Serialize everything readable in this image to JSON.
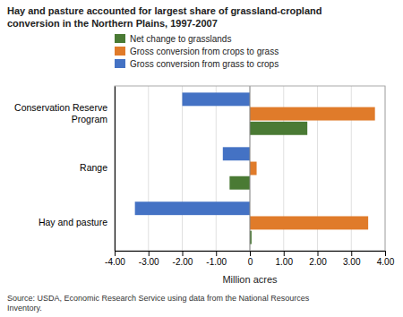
{
  "chart_data": {
    "type": "bar",
    "orientation": "horizontal",
    "title": "Hay and pasture accounted for largest share of grassland-cropland\nconversion in the Northern Plains, 1997-2007",
    "categories": [
      "Hay and pasture",
      "Range",
      "Conservation Reserve\nProgram"
    ],
    "series": [
      {
        "name": "Net change to grasslands",
        "color": "#4a7a34",
        "values": [
          0.05,
          -0.6,
          1.7
        ]
      },
      {
        "name": "Gross conversion from crops to grass",
        "color": "#e07b2a",
        "values": [
          3.5,
          0.2,
          3.7
        ]
      },
      {
        "name": "Gross conversion from grass to crops",
        "color": "#4472c4",
        "values": [
          -3.4,
          -0.8,
          -2.0
        ]
      }
    ],
    "xlabel": "Million acres",
    "xlim": [
      -4.0,
      4.0
    ],
    "xticks": [
      {
        "value": -4.0,
        "label": "-4.00"
      },
      {
        "value": -3.0,
        "label": "-3.00"
      },
      {
        "value": -2.0,
        "label": "-2.00"
      },
      {
        "value": -1.0,
        "label": "-1.00"
      },
      0,
      {
        "value": 1.0,
        "label": "1.00"
      },
      {
        "value": 2.0,
        "label": "2.00"
      },
      {
        "value": 3.0,
        "label": "3.00"
      },
      {
        "value": 4.0,
        "label": "4.00"
      }
    ],
    "grid": true,
    "legend": "top",
    "annotations": [
      "Source: USDA, Economic Research Service using data from the National Resources\nInventory."
    ]
  }
}
